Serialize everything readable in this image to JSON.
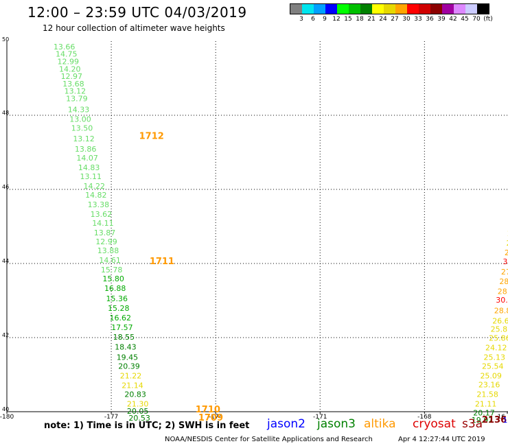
{
  "header": {
    "title": "12:00 – 23:59 UTC 04/03/2019",
    "subtitle": "12 hour collection of altimeter wave heights"
  },
  "legend": {
    "colors": [
      "#808080",
      "#00e5ee",
      "#00a0ff",
      "#0000ff",
      "#00ff00",
      "#00c000",
      "#008000",
      "#ffff00",
      "#e6d800",
      "#ffa500",
      "#ff0000",
      "#d00000",
      "#8b0000",
      "#a000a0",
      "#dd88ff",
      "#ccccff",
      "#000000"
    ],
    "labels": [
      "3",
      "6",
      "9",
      "12",
      "15",
      "18",
      "21",
      "24",
      "27",
      "30",
      "33",
      "36",
      "39",
      "42",
      "45",
      "70",
      "(ft)"
    ]
  },
  "footer": {
    "note": "note:  1) Time is in UTC;  2) SWH is in feet",
    "satellites": [
      {
        "name": "jason2",
        "color": "#0000ff"
      },
      {
        "name": "jason3",
        "color": "#008000"
      },
      {
        "name": "altika",
        "color": "#ff9900"
      },
      {
        "name": "cryosat",
        "color": "#dd0000"
      },
      {
        "name": "s3a",
        "color": "#990000"
      }
    ],
    "credit": "NOAA/NESDIS Center for Satellite Applications and Research",
    "timestamp": "Apr  4 12:27:44 UTC 2019"
  },
  "chart_data": {
    "type": "scatter",
    "title": "12:00 – 23:59 UTC 04/03/2019",
    "subtitle": "12 hour collection of altimeter wave heights",
    "xlim": [
      -180,
      -165.6
    ],
    "ylim": [
      40,
      50
    ],
    "x_ticks": [
      "-180",
      "-177",
      "-174",
      "-171",
      "-168",
      "-16"
    ],
    "y_ticks": [
      "40",
      "42",
      "44",
      "46",
      "48",
      "50"
    ],
    "grid": true,
    "unit": "ft",
    "tracks": [
      {
        "satellite": "altika",
        "points": [
          {
            "lon": -178.66,
            "lat": 49.78,
            "swh": "13.66",
            "color": "#66dd66"
          },
          {
            "lon": -178.6,
            "lat": 49.58,
            "swh": "14.75",
            "color": "#66dd66"
          },
          {
            "lon": -178.55,
            "lat": 49.38,
            "swh": "12.99",
            "color": "#66dd66"
          },
          {
            "lon": -178.5,
            "lat": 49.18,
            "swh": "14.20",
            "color": "#66dd66"
          },
          {
            "lon": -178.45,
            "lat": 48.98,
            "swh": "12.97",
            "color": "#66dd66"
          },
          {
            "lon": -178.4,
            "lat": 48.78,
            "swh": "13.68",
            "color": "#66dd66"
          },
          {
            "lon": -178.35,
            "lat": 48.58,
            "swh": "13.12",
            "color": "#66dd66"
          },
          {
            "lon": -178.3,
            "lat": 48.38,
            "swh": "13.79",
            "color": "#66dd66"
          },
          {
            "lon": -178.25,
            "lat": 48.08,
            "swh": "14.33",
            "color": "#66dd66"
          },
          {
            "lon": -178.2,
            "lat": 47.82,
            "swh": "13.00",
            "color": "#66dd66"
          },
          {
            "lon": -178.15,
            "lat": 47.58,
            "swh": "13.50",
            "color": "#66dd66"
          },
          {
            "lon": -178.1,
            "lat": 47.3,
            "swh": "13.12",
            "color": "#66dd66"
          },
          {
            "lon": -178.05,
            "lat": 47.02,
            "swh": "13.86",
            "color": "#66dd66"
          },
          {
            "lon": -178.0,
            "lat": 46.78,
            "swh": "14.07",
            "color": "#66dd66"
          },
          {
            "lon": -177.95,
            "lat": 46.52,
            "swh": "14.83",
            "color": "#66dd66"
          },
          {
            "lon": -177.9,
            "lat": 46.28,
            "swh": "13.11",
            "color": "#66dd66"
          },
          {
            "lon": -177.8,
            "lat": 46.02,
            "swh": "14.22",
            "color": "#66dd66"
          },
          {
            "lon": -177.75,
            "lat": 45.78,
            "swh": "14.82",
            "color": "#66dd66"
          },
          {
            "lon": -177.68,
            "lat": 45.52,
            "swh": "13.38",
            "color": "#66dd66"
          },
          {
            "lon": -177.6,
            "lat": 45.26,
            "swh": "13.62",
            "color": "#66dd66"
          },
          {
            "lon": -177.55,
            "lat": 45.02,
            "swh": "14.11",
            "color": "#66dd66"
          },
          {
            "lon": -177.5,
            "lat": 44.76,
            "swh": "13.87",
            "color": "#66dd66"
          },
          {
            "lon": -177.45,
            "lat": 44.52,
            "swh": "12.99",
            "color": "#66dd66"
          },
          {
            "lon": -177.4,
            "lat": 44.28,
            "swh": "13.88",
            "color": "#66dd66"
          },
          {
            "lon": -177.35,
            "lat": 44.02,
            "swh": "14.61",
            "color": "#66dd66"
          },
          {
            "lon": -177.3,
            "lat": 43.76,
            "swh": "15.78",
            "color": "#66dd66"
          },
          {
            "lon": -177.25,
            "lat": 43.52,
            "swh": "15.80",
            "color": "#00aa00"
          },
          {
            "lon": -177.2,
            "lat": 43.26,
            "swh": "16.88",
            "color": "#00aa00"
          },
          {
            "lon": -177.15,
            "lat": 42.98,
            "swh": "15.36",
            "color": "#00aa00"
          },
          {
            "lon": -177.1,
            "lat": 42.72,
            "swh": "15.28",
            "color": "#00aa00"
          },
          {
            "lon": -177.05,
            "lat": 42.46,
            "swh": "16.62",
            "color": "#00aa00"
          },
          {
            "lon": -177.0,
            "lat": 42.2,
            "swh": "17.57",
            "color": "#00aa00"
          },
          {
            "lon": -176.95,
            "lat": 41.94,
            "swh": "18.55",
            "color": "#008000"
          },
          {
            "lon": -176.9,
            "lat": 41.68,
            "swh": "18.43",
            "color": "#008000"
          },
          {
            "lon": -176.85,
            "lat": 41.4,
            "swh": "19.45",
            "color": "#008000"
          },
          {
            "lon": -176.8,
            "lat": 41.16,
            "swh": "20.39",
            "color": "#008000"
          },
          {
            "lon": -176.75,
            "lat": 40.9,
            "swh": "21.22",
            "color": "#e6d800"
          },
          {
            "lon": -176.7,
            "lat": 40.64,
            "swh": "21.14",
            "color": "#e6d800"
          },
          {
            "lon": -176.62,
            "lat": 40.4,
            "swh": "20.83",
            "color": "#008000"
          },
          {
            "lon": -176.55,
            "lat": 40.14,
            "swh": "21.30",
            "color": "#e6d800"
          },
          {
            "lon": -176.55,
            "lat": 39.94,
            "swh": "20.05",
            "color": "#008000"
          },
          {
            "lon": -176.5,
            "lat": 39.76,
            "swh": "20.53",
            "color": "#008000"
          }
        ],
        "time_labels": [
          {
            "lon": -176.2,
            "lat": 47.36,
            "text": "1712"
          },
          {
            "lon": -175.9,
            "lat": 43.98,
            "text": "1711"
          },
          {
            "lon": -174.58,
            "lat": 39.98,
            "text": "1710"
          },
          {
            "lon": -174.5,
            "lat": 39.76,
            "text": "1709"
          }
        ]
      },
      {
        "satellite": "jason3",
        "points": [
          {
            "lon": -165.55,
            "lat": 45.32,
            "swh": "2",
            "color": "#e6d800"
          },
          {
            "lon": -165.58,
            "lat": 45.02,
            "swh": "2",
            "color": "#e6d800"
          },
          {
            "lon": -165.62,
            "lat": 44.74,
            "swh": "24.",
            "color": "#e6d800"
          },
          {
            "lon": -165.65,
            "lat": 44.48,
            "swh": "26.1",
            "color": "#e6d800"
          },
          {
            "lon": -165.7,
            "lat": 44.22,
            "swh": "28.35",
            "color": "#ffa500"
          },
          {
            "lon": -165.75,
            "lat": 43.98,
            "swh": "31.63",
            "color": "#ff0000"
          },
          {
            "lon": -165.8,
            "lat": 43.7,
            "swh": "27.84",
            "color": "#ffa500"
          },
          {
            "lon": -165.85,
            "lat": 43.44,
            "swh": "28.75",
            "color": "#ffa500"
          },
          {
            "lon": -165.9,
            "lat": 43.18,
            "swh": "28.73",
            "color": "#ffa500"
          },
          {
            "lon": -165.95,
            "lat": 42.94,
            "swh": "30.06",
            "color": "#ff0000"
          },
          {
            "lon": -166.0,
            "lat": 42.66,
            "swh": "28.83",
            "color": "#ffa500"
          },
          {
            "lon": -166.05,
            "lat": 42.38,
            "swh": "26.64",
            "color": "#e6d800"
          },
          {
            "lon": -166.1,
            "lat": 42.16,
            "swh": "25.87",
            "color": "#e6d800"
          },
          {
            "lon": -166.15,
            "lat": 41.92,
            "swh": "25.86",
            "color": "#e6d800"
          },
          {
            "lon": -166.25,
            "lat": 41.66,
            "swh": "24.12",
            "color": "#e6d800"
          },
          {
            "lon": -166.3,
            "lat": 41.4,
            "swh": "25.13",
            "color": "#e6d800"
          },
          {
            "lon": -166.35,
            "lat": 41.16,
            "swh": "25.54",
            "color": "#e6d800"
          },
          {
            "lon": -166.4,
            "lat": 40.9,
            "swh": "25.09",
            "color": "#e6d800"
          },
          {
            "lon": -166.45,
            "lat": 40.66,
            "swh": "23.16",
            "color": "#e6d800"
          },
          {
            "lon": -166.5,
            "lat": 40.4,
            "swh": "21.58",
            "color": "#e6d800"
          },
          {
            "lon": -166.55,
            "lat": 40.14,
            "swh": "21.11",
            "color": "#e6d800"
          },
          {
            "lon": -166.6,
            "lat": 39.9,
            "swh": "20.17",
            "color": "#008000"
          },
          {
            "lon": -166.65,
            "lat": 39.7,
            "swh": "19.92",
            "color": "#008000"
          }
        ],
        "time_labels": [
          {
            "lon": -165.6,
            "lat": 42.98,
            "text": "2"
          },
          {
            "lon": -166.35,
            "lat": 39.7,
            "text": "2136"
          }
        ]
      },
      {
        "satellite": "jason2",
        "points": [
          {
            "lon": -165.75,
            "lat": 39.7,
            "swh": "11.",
            "color": "#0000ff"
          },
          {
            "lon": -165.6,
            "lat": 39.9,
            "swh": "13",
            "color": "#66dd66"
          }
        ],
        "time_labels": []
      }
    ]
  }
}
